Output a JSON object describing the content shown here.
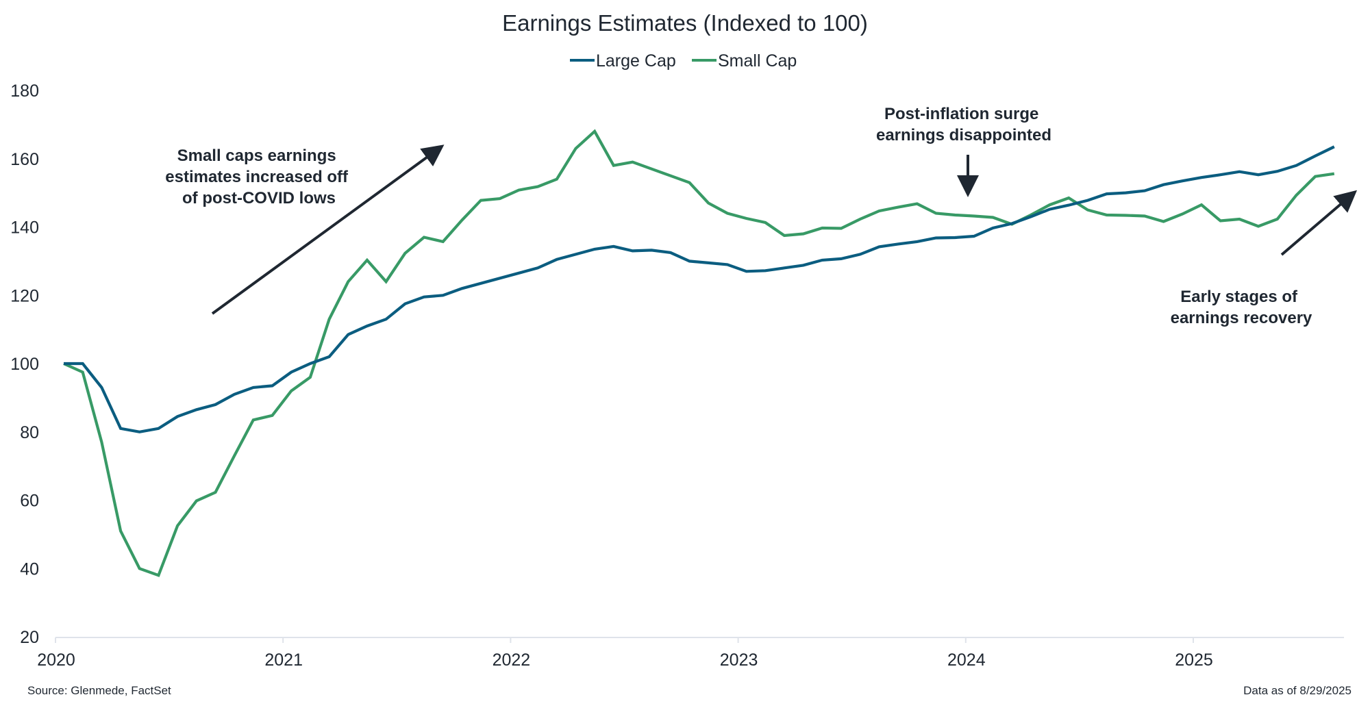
{
  "chart_data": {
    "type": "line",
    "title": "Earnings Estimates (Indexed to 100)",
    "xlabel": "",
    "ylabel": "",
    "ylim": [
      20,
      180
    ],
    "yticks": [
      20,
      40,
      60,
      80,
      100,
      120,
      140,
      160,
      180
    ],
    "xticks": [
      "2020",
      "2021",
      "2022",
      "2023",
      "2024",
      "2025"
    ],
    "x_range": [
      "2020-01",
      "2025-08"
    ],
    "x_frequency": "monthly",
    "grid": false,
    "legend_position": "top-center",
    "series": [
      {
        "name": "Large Cap",
        "color": "#0b5d80",
        "values": [
          100,
          100,
          93,
          81,
          80,
          81,
          84.5,
          86.5,
          88,
          91,
          93,
          93.5,
          97.5,
          100,
          102,
          108.5,
          111,
          113,
          117.5,
          119.5,
          120,
          122,
          123.5,
          125,
          126.5,
          128,
          130.5,
          132,
          133.5,
          134.3,
          133,
          133.2,
          132.5,
          130,
          129.5,
          129,
          127,
          127.2,
          128,
          128.8,
          130.3,
          130.7,
          132,
          134.2,
          135,
          135.7,
          136.8,
          136.9,
          137.3,
          139.7,
          141,
          143,
          145.2,
          146.4,
          147.8,
          149.7,
          150,
          150.6,
          152.4,
          153.5,
          154.5,
          155.3,
          156.2,
          155.3,
          156.3,
          158,
          160.8,
          163.5
        ]
      },
      {
        "name": "Small Cap",
        "color": "#389a66",
        "values": [
          100,
          97.5,
          77,
          51,
          40,
          38,
          52.5,
          59.8,
          62.3,
          73,
          83.5,
          84.8,
          92,
          96,
          113,
          124,
          130.3,
          124,
          132.3,
          137,
          135.7,
          142,
          147.8,
          148.3,
          150.8,
          151.8,
          154,
          163,
          168,
          158,
          159,
          157,
          155,
          153,
          147,
          144,
          142.5,
          141.3,
          137.5,
          138,
          139.7,
          139.6,
          142.3,
          144.7,
          145.8,
          146.8,
          144,
          143.5,
          143.2,
          142.8,
          140.8,
          143.5,
          146.5,
          148.5,
          145,
          143.5,
          143.4,
          143.2,
          141.6,
          143.8,
          146.5,
          141.8,
          142.3,
          140.2,
          142.3,
          149.3,
          154.8,
          155.6
        ]
      }
    ],
    "annotations": [
      {
        "lines": [
          "Small caps earnings",
          "estimates increased off",
          "of post-COVID lows"
        ],
        "arrow": "up-right"
      },
      {
        "lines": [
          "Post-inflation surge",
          "earnings disappointed"
        ],
        "arrow": "down"
      },
      {
        "lines": [
          "Early stages of",
          "earnings recovery"
        ],
        "arrow": "up-right"
      }
    ]
  },
  "footer": {
    "source": "Source: Glenmede, FactSet",
    "data_as_of": "Data as of 8/29/2025"
  },
  "colors": {
    "text": "#1f2731",
    "axis": "#dfe3ea",
    "arrow": "#1f2731"
  }
}
